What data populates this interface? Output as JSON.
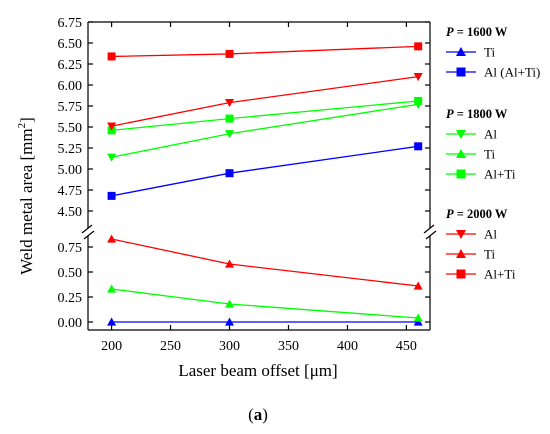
{
  "chart_data": {
    "type": "line",
    "xlabel": "Laser beam offset  [μm]",
    "ylabel": "Weld metal area  [mm",
    "ylabel_sup": "2",
    "ylabel_close": "]",
    "caption_open": "(",
    "caption_letter": "a",
    "caption_close": ")",
    "x": [
      200,
      300,
      460
    ],
    "xlim": [
      180,
      470
    ],
    "x_ticks": [
      "200",
      "250",
      "300",
      "350",
      "400",
      "450"
    ],
    "axis_break": true,
    "upper_panel": {
      "ylim": [
        4.25,
        6.75
      ],
      "y_ticks": [
        "4.50",
        "4.75",
        "5.00",
        "5.25",
        "5.50",
        "5.75",
        "6.00",
        "6.25",
        "6.50",
        "6.75"
      ]
    },
    "lower_panel": {
      "ylim": [
        -0.08,
        0.9
      ],
      "y_ticks": [
        "0.00",
        "0.25",
        "0.50",
        "0.75"
      ]
    },
    "legend_groups": [
      {
        "title_var": "P",
        "title_rest": " = 1600 W",
        "series": [
          {
            "name": "Ti",
            "color": "#0000ff",
            "marker": "triangle-up",
            "panel": "lower",
            "values": [
              0.0,
              0.0,
              0.0
            ]
          },
          {
            "name": "Al (Al+Ti)",
            "color": "#0000ff",
            "marker": "square",
            "panel": "upper",
            "values": [
              4.68,
              4.95,
              5.27
            ]
          }
        ]
      },
      {
        "title_var": "P",
        "title_rest": " = 1800 W",
        "series": [
          {
            "name": "Al",
            "color": "#00ff00",
            "marker": "triangle-down",
            "panel": "upper",
            "values": [
              5.14,
              5.42,
              5.77
            ]
          },
          {
            "name": "Ti",
            "color": "#00ff00",
            "marker": "triangle-up",
            "panel": "lower",
            "values": [
              0.33,
              0.18,
              0.04
            ]
          },
          {
            "name": "Al+Ti",
            "color": "#00ff00",
            "marker": "square",
            "panel": "upper",
            "values": [
              5.46,
              5.6,
              5.81
            ]
          }
        ]
      },
      {
        "title_var": "P",
        "title_rest": " = 2000 W",
        "series": [
          {
            "name": "Al",
            "color": "#ff0000",
            "marker": "triangle-down",
            "panel": "upper",
            "values": [
              5.51,
              5.79,
              6.1
            ]
          },
          {
            "name": "Ti",
            "color": "#ff0000",
            "marker": "triangle-up",
            "panel": "lower",
            "values": [
              0.83,
              0.58,
              0.36
            ]
          },
          {
            "name": "Al+Ti",
            "color": "#ff0000",
            "marker": "square",
            "panel": "upper",
            "values": [
              6.34,
              6.37,
              6.46
            ]
          }
        ]
      }
    ]
  }
}
